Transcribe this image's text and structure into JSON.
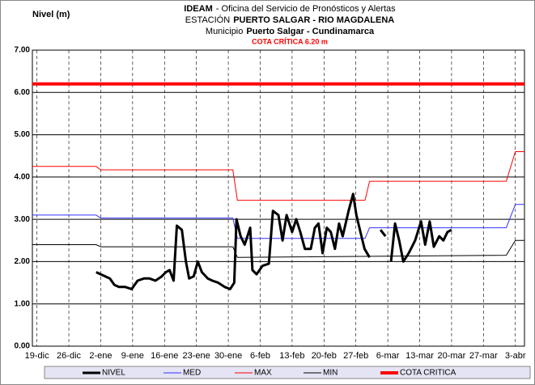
{
  "chart_data": {
    "type": "line",
    "title_parts": {
      "org": "IDEAM",
      "office": "- Oficina del Servicio de Pronósticos y Alertas",
      "station_label": "ESTACIÓN",
      "station": "PUERTO SALGAR - RIO MAGDALENA",
      "municipality_label": "Municipio",
      "municipality": "Puerto Salgar - Cundinamarca",
      "critical": "COTA CRÍTICA 6.20 m"
    },
    "ylabel": "Nivel (m)",
    "xlim": [
      -1,
      107
    ],
    "xticks": [
      {
        "value": 0,
        "label": "19-dic"
      },
      {
        "value": 7,
        "label": "26-dic"
      },
      {
        "value": 14,
        "label": "2-ene"
      },
      {
        "value": 21,
        "label": "9-ene"
      },
      {
        "value": 28,
        "label": "16-ene"
      },
      {
        "value": 35,
        "label": "23-ene"
      },
      {
        "value": 42,
        "label": "30-ene"
      },
      {
        "value": 49,
        "label": "6-feb"
      },
      {
        "value": 56,
        "label": "13-feb"
      },
      {
        "value": 63,
        "label": "20-feb"
      },
      {
        "value": 70,
        "label": "27-feb"
      },
      {
        "value": 77,
        "label": "6-mar"
      },
      {
        "value": 84,
        "label": "13-mar"
      },
      {
        "value": 91,
        "label": "20-mar"
      },
      {
        "value": 98,
        "label": "27-mar"
      },
      {
        "value": 105,
        "label": "3-abr"
      }
    ],
    "ylim": [
      0,
      7
    ],
    "yticks": [
      {
        "value": 0,
        "label": "0.00"
      },
      {
        "value": 1,
        "label": "1.00"
      },
      {
        "value": 2,
        "label": "2.00"
      },
      {
        "value": 3,
        "label": "3.00"
      },
      {
        "value": 4,
        "label": "4.00"
      },
      {
        "value": 5,
        "label": "5.00"
      },
      {
        "value": 6,
        "label": "6.00"
      },
      {
        "value": 7,
        "label": "7.00"
      }
    ],
    "grid": true,
    "legend": "bottom",
    "series": [
      {
        "name": "NIVEL",
        "color": "#000000",
        "width": 3,
        "x": [
          13,
          14,
          15,
          16,
          17,
          18,
          19.4,
          20.8,
          22.1,
          23.5,
          24.7,
          26,
          27.4,
          28.3,
          29.1,
          30,
          30.7,
          31.8,
          32.7,
          33.4,
          34.4,
          35.3,
          36.2,
          37.5,
          38.5,
          39.8,
          41.2,
          42.4,
          43.3,
          43.8,
          44.7,
          45.6,
          46.8,
          47.3,
          48.2,
          49.5,
          50.9,
          51.8,
          53,
          53.9,
          54.8,
          56,
          56.9,
          57.8,
          58.8,
          60.1,
          61,
          61.8,
          62.7,
          63.6,
          64.5,
          65.4,
          66.3,
          67.1,
          68.4,
          69.4,
          70.1,
          71,
          71.9,
          73,
          74,
          75.4,
          76.5,
          77,
          77.7,
          78.6,
          79.5,
          80.4,
          81.6,
          83,
          84.3,
          85.2,
          86.2,
          87.1,
          88.3,
          89.2,
          90.1,
          91
        ],
        "values": [
          1.75,
          1.7,
          1.65,
          1.6,
          1.45,
          1.4,
          1.4,
          1.35,
          1.55,
          1.6,
          1.6,
          1.55,
          1.65,
          1.75,
          1.8,
          1.55,
          2.85,
          2.75,
          2.0,
          1.6,
          1.65,
          2.0,
          1.75,
          1.6,
          1.55,
          1.5,
          1.4,
          1.35,
          1.5,
          3.0,
          2.6,
          2.4,
          2.8,
          1.8,
          1.7,
          1.9,
          1.95,
          3.2,
          3.1,
          2.5,
          3.1,
          2.7,
          3.0,
          2.7,
          2.3,
          2.3,
          2.8,
          2.9,
          2.2,
          2.8,
          2.7,
          2.3,
          2.9,
          2.6,
          3.2,
          3.6,
          3.1,
          2.7,
          2.3,
          2.1,
          null,
          2.75,
          2.6,
          null,
          2.0,
          2.9,
          2.5,
          2.0,
          2.2,
          2.5,
          2.95,
          2.4,
          2.95,
          2.35,
          2.6,
          2.5,
          2.7,
          2.75
        ]
      },
      {
        "name": "MED",
        "color": "#3333ff",
        "width": 1,
        "x": [
          -1,
          13,
          14,
          43,
          44,
          72,
          73,
          103,
          105,
          107
        ],
        "values": [
          3.1,
          3.1,
          3.03,
          3.03,
          2.55,
          2.55,
          2.8,
          2.8,
          3.35,
          3.35
        ]
      },
      {
        "name": "MAX",
        "color": "#ff0000",
        "width": 1,
        "x": [
          -1,
          13,
          14,
          43,
          44,
          72,
          73,
          103,
          105,
          107
        ],
        "values": [
          4.25,
          4.25,
          4.17,
          4.17,
          3.45,
          3.45,
          3.9,
          3.9,
          4.6,
          4.6
        ]
      },
      {
        "name": "MIN",
        "color": "#000000",
        "width": 1,
        "x": [
          -1,
          13,
          14,
          43,
          44,
          103,
          105,
          107
        ],
        "values": [
          2.4,
          2.4,
          2.35,
          2.35,
          2.1,
          2.15,
          2.5,
          2.5
        ]
      },
      {
        "name": "COTA CRITICA",
        "color": "#ff0000",
        "width": 4,
        "x": [
          -1,
          107
        ],
        "values": [
          6.2,
          6.2
        ]
      }
    ]
  }
}
